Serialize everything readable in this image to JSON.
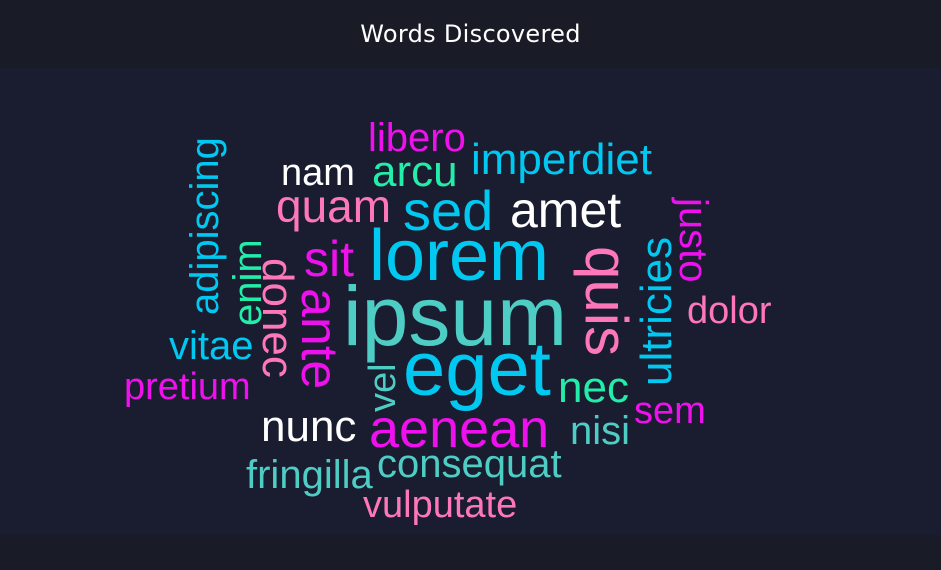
{
  "title": "Words Discovered",
  "palette": {
    "background": "#1a1c30",
    "frame": "#191b27",
    "white": "#ffffff",
    "magenta": "#ee11ee",
    "cyan": "#00c8f0",
    "teal": "#4ecdc4",
    "pink": "#ff77bb",
    "green": "#22eeaa"
  },
  "words": [
    {
      "text": "libero",
      "color": "#ee11ee"
    },
    {
      "text": "nam",
      "color": "#ffffff"
    },
    {
      "text": "arcu",
      "color": "#22eeaa"
    },
    {
      "text": "imperdiet",
      "color": "#00c8f0"
    },
    {
      "text": "quam",
      "color": "#ff77bb"
    },
    {
      "text": "sed",
      "color": "#00c8f0"
    },
    {
      "text": "amet",
      "color": "#ffffff"
    },
    {
      "text": "adipiscing",
      "color": "#00c8f0"
    },
    {
      "text": "enim",
      "color": "#22eeaa"
    },
    {
      "text": "sit",
      "color": "#ee11ee"
    },
    {
      "text": "lorem",
      "color": "#00c8f0"
    },
    {
      "text": "quis",
      "color": "#ff77bb"
    },
    {
      "text": "ultricies",
      "color": "#00c8f0"
    },
    {
      "text": "justo",
      "color": "#ee11ee"
    },
    {
      "text": "donec",
      "color": "#ff77bb"
    },
    {
      "text": "ante",
      "color": "#ee11ee"
    },
    {
      "text": "ipsum",
      "color": "#4ecdc4"
    },
    {
      "text": "dolor",
      "color": "#ff77bb"
    },
    {
      "text": "vitae",
      "color": "#00c8f0"
    },
    {
      "text": "vel",
      "color": "#4ecdc4"
    },
    {
      "text": "eget",
      "color": "#00c8f0"
    },
    {
      "text": "pretium",
      "color": "#ee11ee"
    },
    {
      "text": "nec",
      "color": "#22eeaa"
    },
    {
      "text": "sem",
      "color": "#ee11ee"
    },
    {
      "text": "nunc",
      "color": "#ffffff"
    },
    {
      "text": "aenean",
      "color": "#ee11ee"
    },
    {
      "text": "nisi",
      "color": "#4ecdc4"
    },
    {
      "text": "consequat",
      "color": "#4ecdc4"
    },
    {
      "text": "fringilla",
      "color": "#4ecdc4"
    },
    {
      "text": "vulputate",
      "color": "#ff77bb"
    }
  ]
}
